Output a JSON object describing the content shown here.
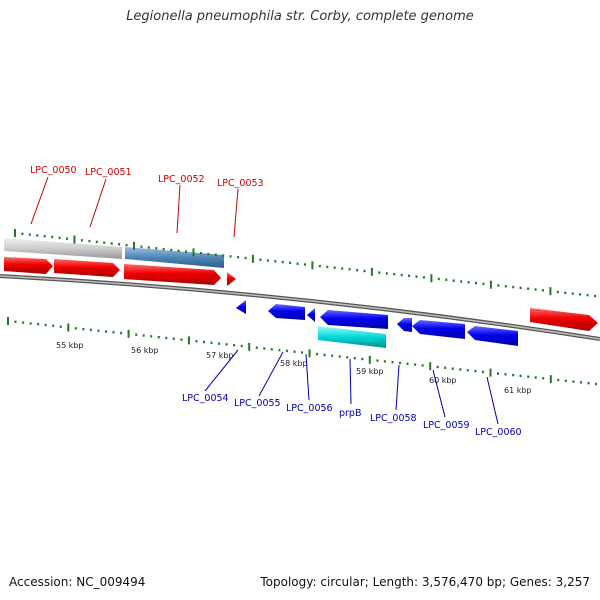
{
  "title": "Legionella pneumophila str. Corby, complete genome",
  "footer": {
    "accession": "Accession: NC_009494",
    "topology": "Topology: circular; Length: 3,576,470 bp; Genes: 3,257"
  },
  "colors": {
    "forward_label": "#cc0000",
    "reverse_label": "#0000aa",
    "tick": "#227722",
    "backbone": "#888888"
  },
  "scale_labels": [
    "55 kbp",
    "56 kbp",
    "57 kbp",
    "58 kbp",
    "59 kbp",
    "60 kbp",
    "61 kbp"
  ],
  "forward_genes": [
    {
      "label": "LPC_0050"
    },
    {
      "label": "LPC_0051"
    },
    {
      "label": "LPC_0052"
    },
    {
      "label": "LPC_0053"
    }
  ],
  "reverse_genes": [
    {
      "label": "LPC_0054"
    },
    {
      "label": "LPC_0055"
    },
    {
      "label": "LPC_0056"
    },
    {
      "label": "prpB"
    },
    {
      "label": "LPC_0058"
    },
    {
      "label": "LPC_0059"
    },
    {
      "label": "LPC_0060"
    }
  ]
}
